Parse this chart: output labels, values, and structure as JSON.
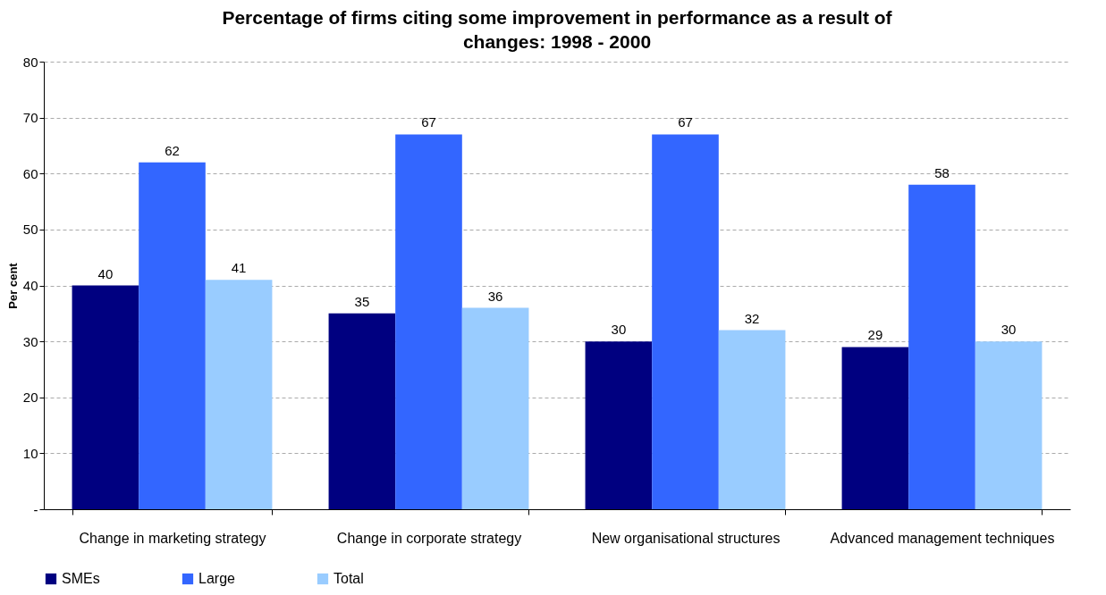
{
  "chart_data": {
    "type": "bar",
    "title": "Percentage of firms citing some improvement in performance as a result of changes: 1998 - 2000",
    "ylabel": "Per cent",
    "categories": [
      "Change in marketing strategy",
      "Change in corporate strategy",
      "New organisational structures",
      "Advanced management techniques"
    ],
    "series": [
      {
        "name": "SMEs",
        "color": "#000080",
        "values": [
          40,
          35,
          30,
          29
        ]
      },
      {
        "name": "Large",
        "color": "#3366ff",
        "values": [
          62,
          67,
          67,
          58
        ]
      },
      {
        "name": "Total",
        "color": "#99ccff",
        "values": [
          41,
          36,
          32,
          30
        ]
      }
    ],
    "ylim": [
      0,
      80
    ],
    "yticks": [
      {
        "value": 0,
        "label": "-"
      },
      10,
      20,
      30,
      40,
      50,
      60,
      70,
      80
    ],
    "grid": "y",
    "legend": "bottom",
    "data_labels": true
  }
}
